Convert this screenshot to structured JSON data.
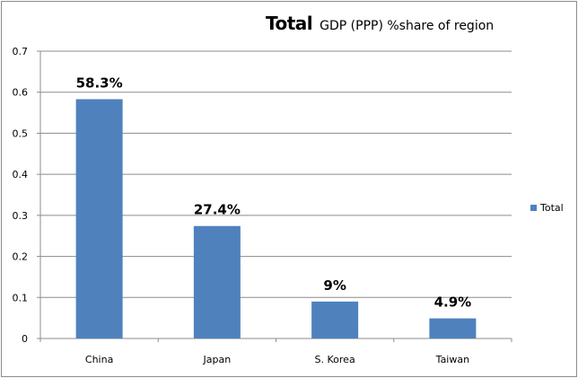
{
  "chart_data": {
    "type": "bar",
    "title_main": "Total",
    "title_sub": "GDP (PPP) %share of region",
    "categories": [
      "China",
      "Japan",
      "S. Korea",
      "Taiwan"
    ],
    "series": [
      {
        "name": "Total",
        "values": [
          0.583,
          0.274,
          0.09,
          0.049
        ],
        "labels": [
          "58.3%",
          "27.4%",
          "9%",
          "4.9%"
        ],
        "color": "#4f81bd"
      }
    ],
    "ylim": [
      0,
      0.7
    ],
    "yticks": [
      "0",
      "0.1",
      "0.2",
      "0.3",
      "0.4",
      "0.5",
      "0.6",
      "0.7"
    ],
    "xlabel": "",
    "ylabel": "",
    "grid": true,
    "legend": "right"
  }
}
